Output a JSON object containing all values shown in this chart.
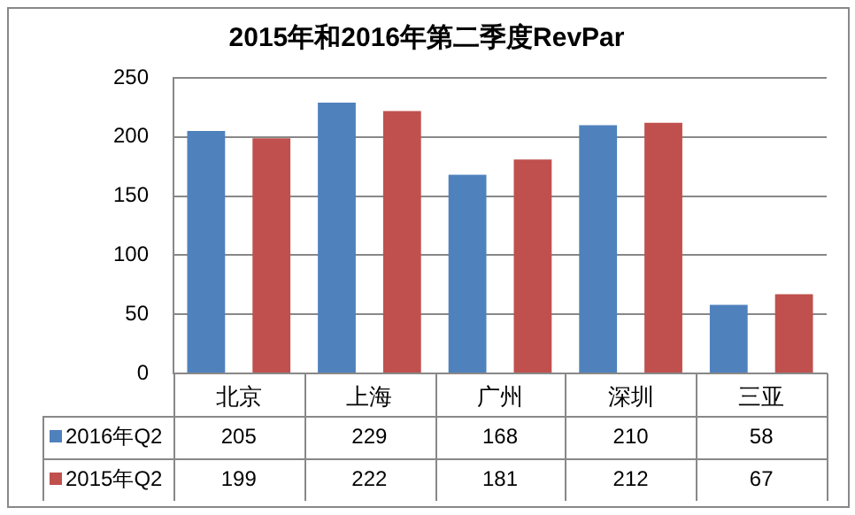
{
  "chart_data": {
    "type": "bar",
    "title": "2015年和2016年第二季度RevPar",
    "categories": [
      "北京",
      "上海",
      "广州",
      "深圳",
      "三亚"
    ],
    "series": [
      {
        "name": "2016年Q2",
        "color": "#4f81bd",
        "values": [
          205,
          229,
          168,
          210,
          58
        ]
      },
      {
        "name": "2015年Q2",
        "color": "#c0504d",
        "values": [
          199,
          222,
          181,
          212,
          67
        ]
      }
    ],
    "ylim": [
      0,
      250
    ],
    "yticks": [
      0,
      50,
      100,
      150,
      200,
      250
    ],
    "grid": "y",
    "legend": "bottom left",
    "data_labels": true
  }
}
